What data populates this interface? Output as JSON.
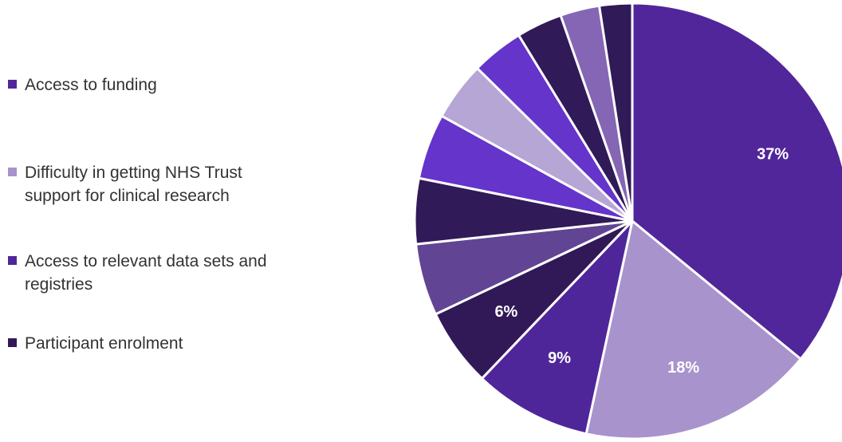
{
  "chart_data": {
    "type": "pie",
    "title": "",
    "legend_position": "left",
    "slices": [
      {
        "name": "Access to funding",
        "value": 37,
        "label": "37%",
        "color": "#51269a"
      },
      {
        "name": "Difficulty in getting NHS Trust support for clinical research",
        "value": 18,
        "label": "18%",
        "color": "#a893cc"
      },
      {
        "name": "Access to relevant data sets and registries",
        "value": 9,
        "label": "9%",
        "color": "#4f269a"
      },
      {
        "name": "Participant enrolment",
        "value": 6,
        "label": "6%",
        "color": "#311958"
      },
      {
        "name": "",
        "value": 5.5,
        "label": "",
        "color": "#614594"
      },
      {
        "name": "",
        "value": 5,
        "label": "",
        "color": "#311a58"
      },
      {
        "name": "",
        "value": 5,
        "label": "",
        "color": "#6434cb"
      },
      {
        "name": "",
        "value": 4.5,
        "label": "",
        "color": "#b6a6d6"
      },
      {
        "name": "",
        "value": 4,
        "label": "",
        "color": "#6434cb"
      },
      {
        "name": "",
        "value": 3.5,
        "label": "",
        "color": "#311a58"
      },
      {
        "name": "",
        "value": 3,
        "label": "",
        "color": "#8566b5"
      },
      {
        "name": "",
        "value": 2.5,
        "label": "",
        "color": "#311a58"
      }
    ]
  },
  "legend": {
    "items": [
      {
        "label": "Access to funding",
        "color": "#51269a"
      },
      {
        "label": "Difficulty in getting NHS Trust support for clinical research",
        "color": "#a893cc"
      },
      {
        "label": "Access to relevant data sets and registries",
        "color": "#4f269a"
      },
      {
        "label": "Participant enrolment",
        "color": "#311958"
      }
    ]
  }
}
